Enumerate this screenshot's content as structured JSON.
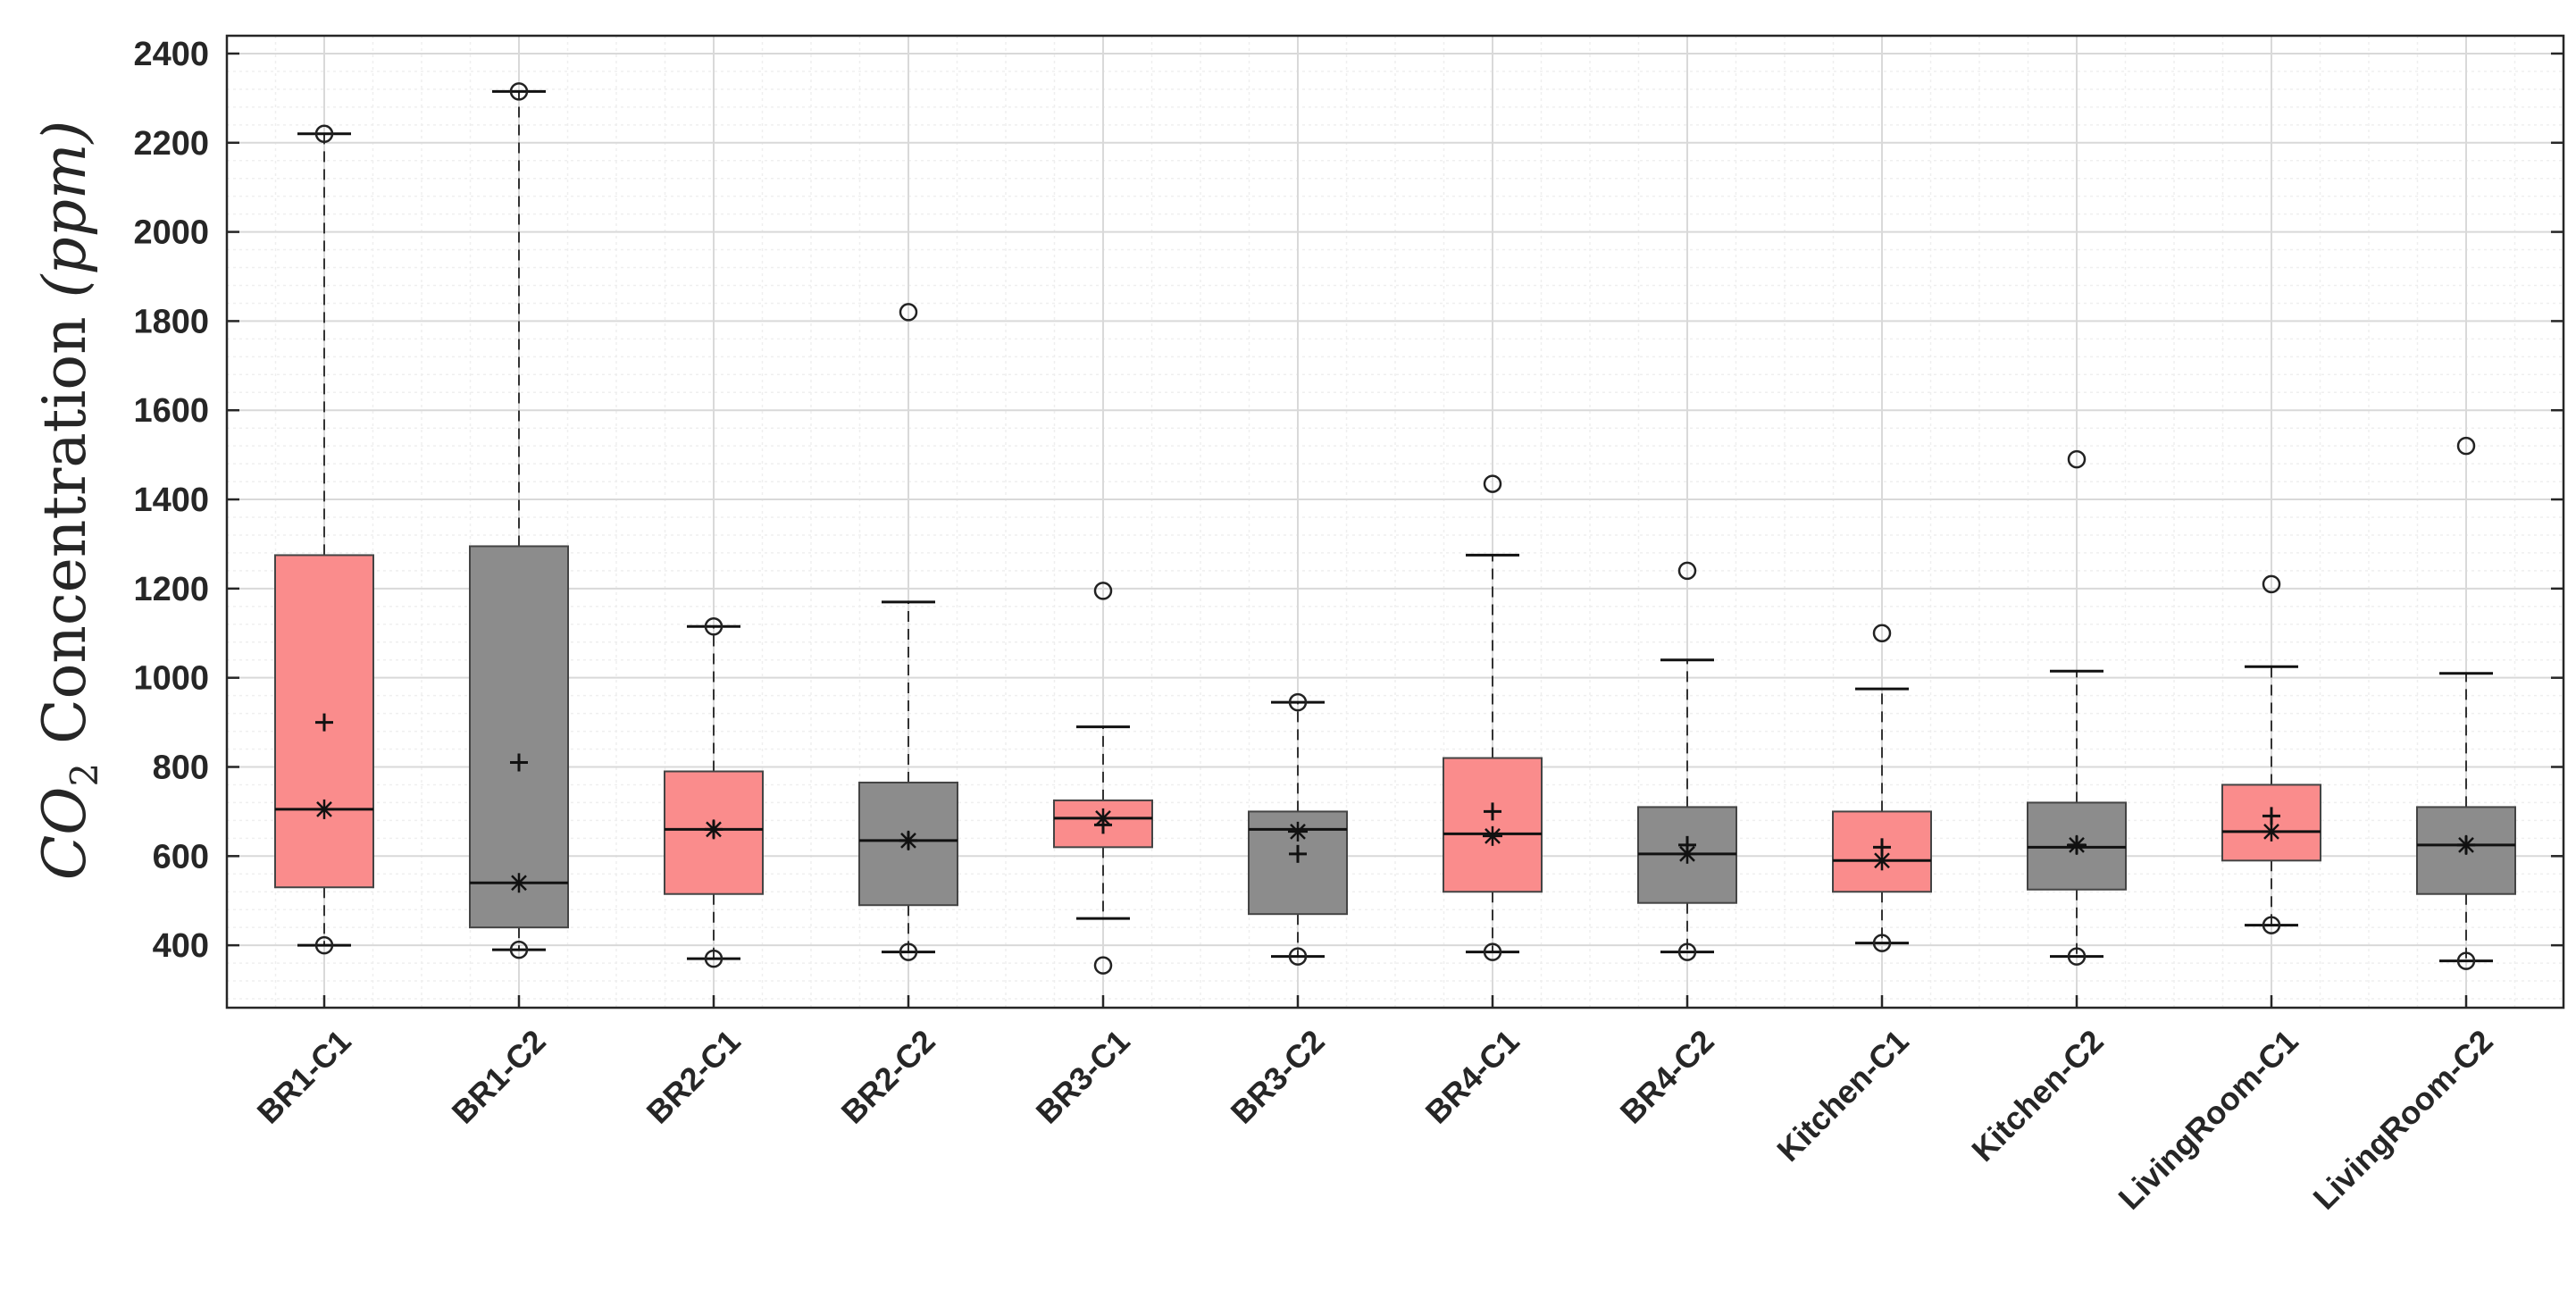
{
  "chart_data": {
    "type": "box",
    "title": "",
    "xlabel": "",
    "ylabel": {
      "pre": "CO",
      "sub": "2",
      "mid": " Concentration ",
      "unit": "(ppm)"
    },
    "ylim": [
      260,
      2440
    ],
    "yticks": [
      400,
      600,
      800,
      1000,
      1200,
      1400,
      1600,
      1800,
      2000,
      2200,
      2400
    ],
    "grid": true,
    "colors": {
      "C1": "#fa8c8c",
      "C2": "#8c8c8c",
      "grid_major": "#d9d9d9",
      "grid_minor": "#efefef",
      "axis": "#262626"
    },
    "categories": [
      "BR1-C1",
      "BR1-C2",
      "BR2-C1",
      "BR2-C2",
      "BR3-C1",
      "BR3-C2",
      "BR4-C1",
      "BR4-C2",
      "Kitchen-C1",
      "Kitchen-C2",
      "LivingRoom-C1",
      "LivingRoom-C2"
    ],
    "boxes": [
      {
        "group": "C1",
        "q1": 530,
        "median": 705,
        "q3": 1275,
        "whisker_low": 400,
        "whisker_high": 2220,
        "mean": 900,
        "marker_star": 705,
        "outliers": [
          400,
          2220
        ]
      },
      {
        "group": "C2",
        "q1": 440,
        "median": 540,
        "q3": 1295,
        "whisker_low": 390,
        "whisker_high": 2315,
        "mean": 810,
        "marker_star": 540,
        "outliers": [
          390,
          2315
        ]
      },
      {
        "group": "C1",
        "q1": 515,
        "median": 660,
        "q3": 790,
        "whisker_low": 370,
        "whisker_high": 1115,
        "mean": 660,
        "marker_star": 660,
        "outliers": [
          370,
          1115
        ]
      },
      {
        "group": "C2",
        "q1": 490,
        "median": 635,
        "q3": 765,
        "whisker_low": 385,
        "whisker_high": 1170,
        "mean": 635,
        "marker_star": 635,
        "outliers": [
          385,
          1820
        ]
      },
      {
        "group": "C1",
        "q1": 620,
        "median": 685,
        "q3": 725,
        "whisker_low": 460,
        "whisker_high": 890,
        "mean": 670,
        "marker_star": 685,
        "outliers": [
          355,
          1195
        ]
      },
      {
        "group": "C2",
        "q1": 470,
        "median": 660,
        "q3": 700,
        "whisker_low": 375,
        "whisker_high": 945,
        "mean": 605,
        "marker_star": 655,
        "outliers": [
          375,
          945
        ]
      },
      {
        "group": "C1",
        "q1": 520,
        "median": 650,
        "q3": 820,
        "whisker_low": 385,
        "whisker_high": 1275,
        "mean": 700,
        "marker_star": 645,
        "outliers": [
          385,
          1435
        ]
      },
      {
        "group": "C2",
        "q1": 495,
        "median": 605,
        "q3": 710,
        "whisker_low": 385,
        "whisker_high": 1040,
        "mean": 625,
        "marker_star": 605,
        "outliers": [
          385,
          1240
        ]
      },
      {
        "group": "C1",
        "q1": 520,
        "median": 590,
        "q3": 700,
        "whisker_low": 405,
        "whisker_high": 975,
        "mean": 620,
        "marker_star": 590,
        "outliers": [
          405,
          1100
        ]
      },
      {
        "group": "C2",
        "q1": 525,
        "median": 620,
        "q3": 720,
        "whisker_low": 375,
        "whisker_high": 1015,
        "mean": 625,
        "marker_star": 625,
        "outliers": [
          375,
          1490
        ]
      },
      {
        "group": "C1",
        "q1": 590,
        "median": 655,
        "q3": 760,
        "whisker_low": 445,
        "whisker_high": 1025,
        "mean": 690,
        "marker_star": 655,
        "outliers": [
          445,
          1210
        ]
      },
      {
        "group": "C2",
        "q1": 515,
        "median": 625,
        "q3": 710,
        "whisker_low": 365,
        "whisker_high": 1010,
        "mean": 625,
        "marker_star": 625,
        "outliers": [
          365,
          1520
        ]
      }
    ]
  }
}
